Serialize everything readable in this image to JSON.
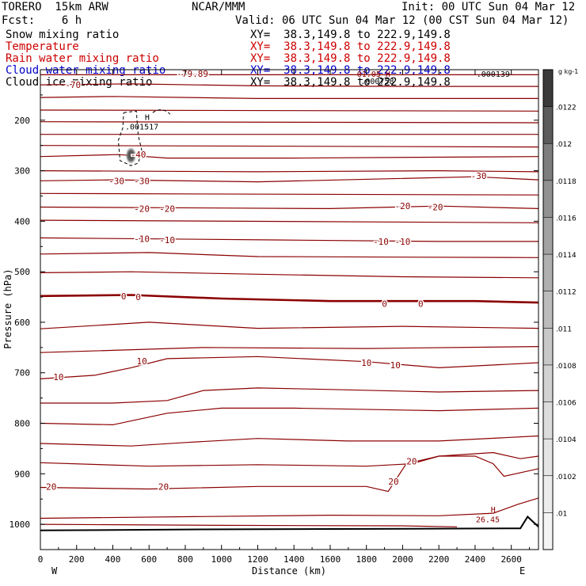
{
  "header": {
    "model": "TORERO  15km ARW",
    "org": "NCAR/MMM",
    "init": "Init: 00 UTC Sun 04 Mar 12",
    "fcst": "Fcst:    6 h",
    "valid": "Valid: 06 UTC Sun 04 Mar 12 (00 CST Sun 04 Mar 12)"
  },
  "fields": [
    {
      "name": "Snow mixing ratio",
      "xy": "XY=  38.3,149.8 to 222.9,149.8",
      "color": "#000000"
    },
    {
      "name": "Temperature",
      "xy": "XY=  38.3,149.8 to 222.9,149.8",
      "color": "#cc0000"
    },
    {
      "name": "Rain water mixing ratio",
      "xy": "XY=  38.3,149.8 to 222.9,149.8",
      "color": "#cc0000"
    },
    {
      "name": "Cloud water mixing ratio",
      "xy": "XY=  38.3,149.8 to 222.9,149.8",
      "color": "#0000cc"
    },
    {
      "name": "Cloud ice mixing ratio",
      "xy": "XY=  38.3,149.8 to 222.9,149.8",
      "color": "#000000"
    }
  ],
  "colors": {
    "isotherm": "#8b0000",
    "terrain": "#000000"
  },
  "chart_data": {
    "type": "cross-section contour",
    "xlabel": "Distance (km)",
    "ylabel": "Pressure (hPa)",
    "xlim": [
      0,
      2750
    ],
    "ylim": [
      1050,
      100
    ],
    "x_ticks": [
      0,
      200,
      400,
      600,
      800,
      1000,
      1200,
      1400,
      1600,
      1800,
      2000,
      2200,
      2400,
      2600
    ],
    "y_ticks": [
      200,
      300,
      400,
      500,
      600,
      700,
      800,
      900,
      1000
    ],
    "left_end_label": "W",
    "right_end_label": "E",
    "colorbar": {
      "unit": "g kg-1",
      "ticks": [
        ".01",
        ".0102",
        ".0104",
        ".0106",
        ".0108",
        ".011",
        ".0112",
        ".0114",
        ".0116",
        ".0118",
        ".012",
        ".0122"
      ],
      "colors": [
        "#f4f4f4",
        "#ececec",
        "#e4e4e4",
        "#dcdcdc",
        "#d2d2d2",
        "#c8c8c8",
        "#bcbcbc",
        "#b0b0b0",
        "#a2a2a2",
        "#929292",
        "#7e7e7e",
        "#5c5c5c",
        "#3a3a3a"
      ]
    },
    "isotherm_labels": [
      {
        "text": "-79.89",
        "x": 840,
        "p": 108
      },
      {
        "text": "-70",
        "x": 180,
        "p": 130
      },
      {
        "text": "-40",
        "x": 540,
        "p": 268
      },
      {
        "text": "-30",
        "x": 420,
        "p": 320
      },
      {
        "text": "-30",
        "x": 560,
        "p": 320
      },
      {
        "text": "-30",
        "x": 2420,
        "p": 310
      },
      {
        "text": "-20",
        "x": 560,
        "p": 375
      },
      {
        "text": "-20",
        "x": 700,
        "p": 375
      },
      {
        "text": "-20",
        "x": 2000,
        "p": 370
      },
      {
        "text": "-20",
        "x": 2180,
        "p": 372
      },
      {
        "text": "-10",
        "x": 560,
        "p": 435
      },
      {
        "text": "-10",
        "x": 700,
        "p": 437
      },
      {
        "text": "-10",
        "x": 1880,
        "p": 440
      },
      {
        "text": "-10",
        "x": 2000,
        "p": 440
      },
      {
        "text": "0",
        "x": 460,
        "p": 548
      },
      {
        "text": "0",
        "x": 540,
        "p": 550
      },
      {
        "text": "0",
        "x": 1900,
        "p": 563
      },
      {
        "text": "0",
        "x": 2100,
        "p": 563
      },
      {
        "text": "10",
        "x": 100,
        "p": 708
      },
      {
        "text": "10",
        "x": 560,
        "p": 677
      },
      {
        "text": "10",
        "x": 1800,
        "p": 680
      },
      {
        "text": "10",
        "x": 1960,
        "p": 685
      },
      {
        "text": "20",
        "x": 60,
        "p": 925
      },
      {
        "text": "20",
        "x": 680,
        "p": 925
      },
      {
        "text": "20",
        "x": 1950,
        "p": 915
      },
      {
        "text": "20",
        "x": 2050,
        "p": 875
      }
    ],
    "isotherms": [
      [
        [
          0,
          110
        ],
        [
          2750,
          110
        ]
      ],
      [
        [
          0,
          130
        ],
        [
          500,
          128
        ],
        [
          1200,
          132
        ],
        [
          2000,
          133
        ],
        [
          2750,
          133
        ]
      ],
      [
        [
          0,
          155
        ],
        [
          400,
          153
        ],
        [
          1200,
          157
        ],
        [
          2750,
          157
        ]
      ],
      [
        [
          0,
          180
        ],
        [
          2750,
          182
        ]
      ],
      [
        [
          0,
          203
        ],
        [
          2750,
          205
        ]
      ],
      [
        [
          0,
          228
        ],
        [
          2750,
          228
        ]
      ],
      [
        [
          0,
          250
        ],
        [
          2750,
          253
        ]
      ],
      [
        [
          0,
          272
        ],
        [
          430,
          268
        ],
        [
          700,
          275
        ],
        [
          1400,
          275
        ],
        [
          2750,
          272
        ]
      ],
      [
        [
          0,
          300
        ],
        [
          1200,
          302
        ],
        [
          2200,
          300
        ],
        [
          2750,
          302
        ]
      ],
      [
        [
          0,
          320
        ],
        [
          400,
          318
        ],
        [
          1200,
          322
        ],
        [
          2400,
          312
        ],
        [
          2750,
          318
        ]
      ],
      [
        [
          0,
          345
        ],
        [
          2750,
          348
        ]
      ],
      [
        [
          0,
          372
        ],
        [
          1600,
          375
        ],
        [
          2200,
          370
        ],
        [
          2750,
          375
        ]
      ],
      [
        [
          0,
          398
        ],
        [
          2750,
          403
        ]
      ],
      [
        [
          0,
          433
        ],
        [
          1300,
          437
        ],
        [
          2200,
          440
        ],
        [
          2750,
          440
        ]
      ],
      [
        [
          0,
          465
        ],
        [
          600,
          462
        ],
        [
          1200,
          470
        ],
        [
          2750,
          472
        ]
      ],
      [
        [
          0,
          502
        ],
        [
          500,
          500
        ],
        [
          1200,
          505
        ],
        [
          2000,
          510
        ],
        [
          2750,
          512
        ]
      ],
      [
        [
          0,
          548
        ],
        [
          500,
          546
        ],
        [
          1000,
          553
        ],
        [
          1600,
          558
        ],
        [
          2400,
          558
        ],
        [
          2750,
          561
        ]
      ],
      [
        [
          0,
          613
        ],
        [
          600,
          600
        ],
        [
          1200,
          612
        ],
        [
          2000,
          608
        ],
        [
          2750,
          612
        ]
      ],
      [
        [
          0,
          660
        ],
        [
          900,
          650
        ],
        [
          1800,
          652
        ],
        [
          2750,
          648
        ]
      ],
      [
        [
          0,
          712
        ],
        [
          300,
          705
        ],
        [
          500,
          690
        ],
        [
          700,
          672
        ],
        [
          1200,
          668
        ],
        [
          1800,
          678
        ],
        [
          2200,
          690
        ],
        [
          2750,
          680
        ]
      ],
      [
        [
          0,
          760
        ],
        [
          400,
          760
        ],
        [
          700,
          755
        ],
        [
          900,
          735
        ],
        [
          1200,
          730
        ],
        [
          1600,
          733
        ],
        [
          2200,
          738
        ],
        [
          2750,
          735
        ]
      ],
      [
        [
          0,
          800
        ],
        [
          400,
          803
        ],
        [
          700,
          780
        ],
        [
          1000,
          770
        ],
        [
          1400,
          770
        ],
        [
          2200,
          775
        ],
        [
          2750,
          770
        ]
      ],
      [
        [
          0,
          840
        ],
        [
          500,
          845
        ],
        [
          800,
          838
        ],
        [
          1200,
          830
        ],
        [
          1700,
          835
        ],
        [
          2200,
          835
        ],
        [
          2750,
          825
        ]
      ],
      [
        [
          0,
          878
        ],
        [
          600,
          885
        ],
        [
          1200,
          882
        ],
        [
          1800,
          885
        ],
        [
          2050,
          880
        ],
        [
          2200,
          865
        ],
        [
          2500,
          858
        ],
        [
          2650,
          870
        ],
        [
          2750,
          865
        ]
      ],
      [
        [
          0,
          927
        ],
        [
          600,
          930
        ],
        [
          1200,
          925
        ],
        [
          1800,
          925
        ],
        [
          1920,
          935
        ],
        [
          2020,
          880
        ],
        [
          2200,
          865
        ],
        [
          2400,
          865
        ],
        [
          2500,
          880
        ],
        [
          2560,
          905
        ],
        [
          2750,
          890
        ]
      ],
      [
        [
          0,
          988
        ],
        [
          800,
          985
        ],
        [
          1600,
          982
        ],
        [
          2200,
          983
        ],
        [
          2500,
          978
        ],
        [
          2640,
          960
        ],
        [
          2750,
          948
        ]
      ],
      [
        [
          0,
          1000
        ],
        [
          1000,
          1002
        ],
        [
          2000,
          1003
        ],
        [
          2300,
          1005
        ]
      ]
    ],
    "terrain": [
      [
        0,
        1012
      ],
      [
        900,
        1010
      ],
      [
        2000,
        1009
      ],
      [
        2650,
        1008
      ],
      [
        2690,
        985
      ],
      [
        2720,
        995
      ],
      [
        2750,
        1005
      ]
    ],
    "ice_contour": [
      [
        460,
        185
      ],
      [
        530,
        182
      ],
      [
        540,
        230
      ],
      [
        560,
        260
      ],
      [
        540,
        285
      ],
      [
        500,
        290
      ],
      [
        440,
        280
      ],
      [
        430,
        240
      ],
      [
        455,
        215
      ],
      [
        460,
        185
      ]
    ],
    "snow_blob": {
      "x": 500,
      "p": 270
    },
    "extrema_labels": [
      {
        "text": "H",
        "x": 590,
        "p": 193
      },
      {
        "text": ".001517",
        "x": 560,
        "p": 212
      },
      {
        "text": "H",
        "x": 2500,
        "p": 970
      },
      {
        "text": "26.45",
        "x": 2470,
        "p": 990
      },
      {
        "text": ".000139",
        "x": 2500,
        "p": 108
      },
      {
        "text": ".000758",
        "x": 1860,
        "p": 122
      },
      {
        "text": "01.05 H",
        "x": 1840,
        "p": 108
      }
    ]
  }
}
